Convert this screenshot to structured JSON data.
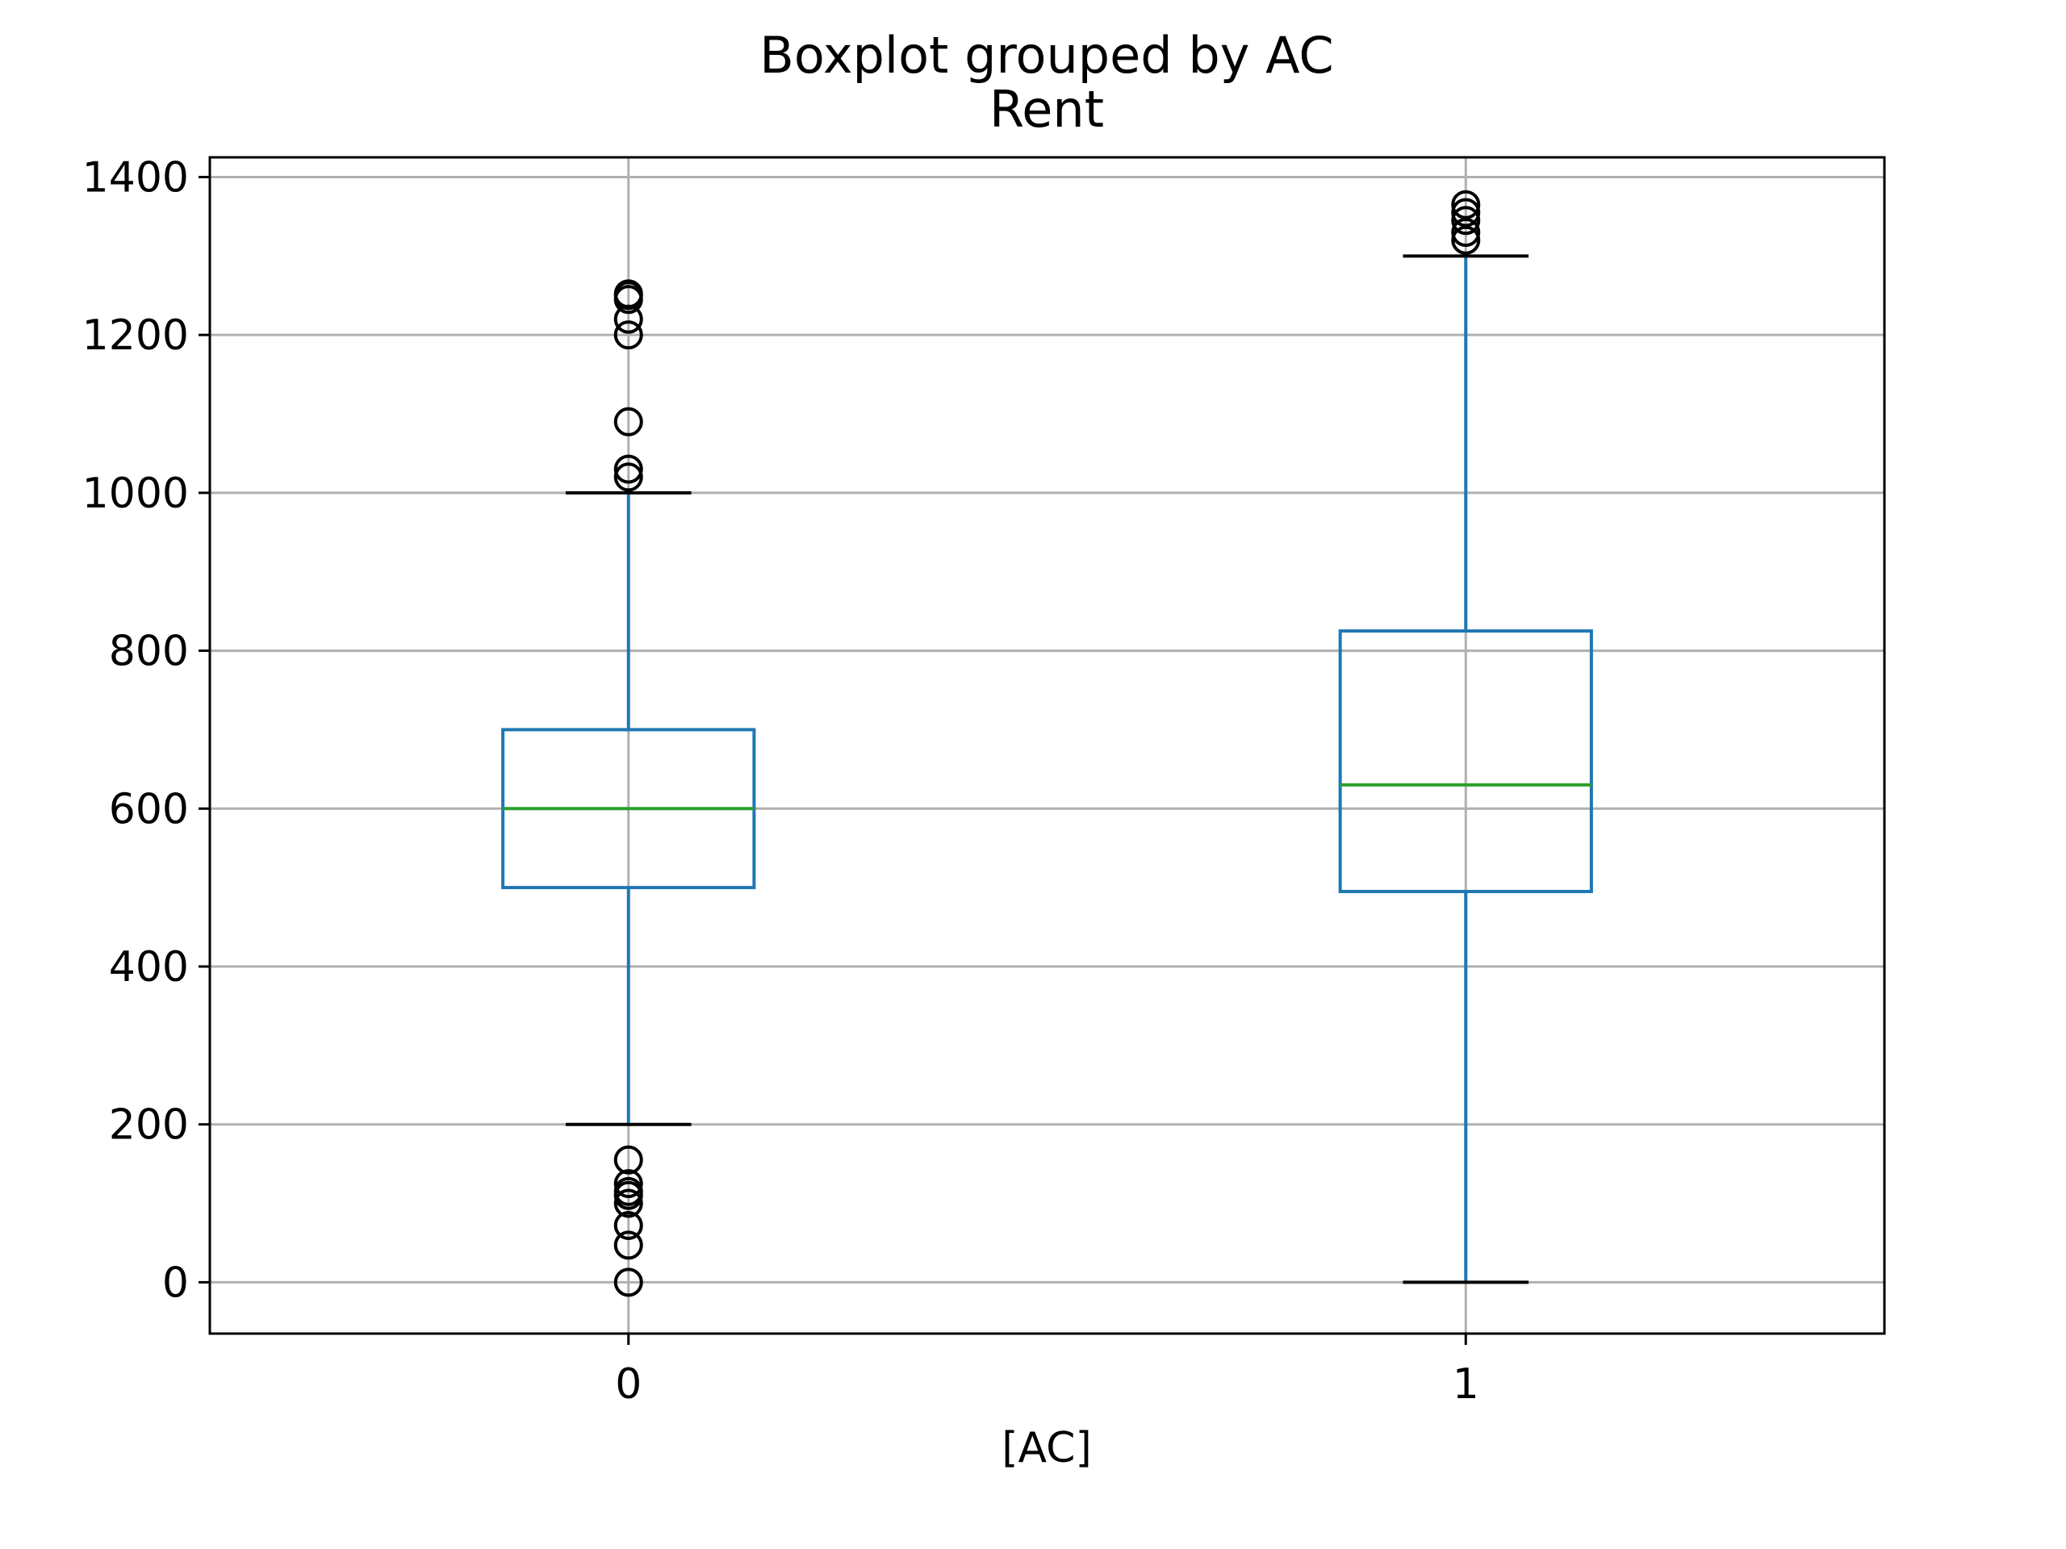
{
  "chart_data": {
    "type": "boxplot",
    "suptitle": "Boxplot grouped by AC",
    "title": "Rent",
    "xlabel": "[AC]",
    "ylabel": "",
    "ylim": [
      -65,
      1425
    ],
    "yticks": [
      0,
      200,
      400,
      600,
      800,
      1000,
      1200,
      1400
    ],
    "grid": true,
    "categories": [
      "0",
      "1"
    ],
    "boxes": [
      {
        "category": "0",
        "whisker_low": 200,
        "q1": 500,
        "median": 600,
        "q3": 700,
        "whisker_high": 1000,
        "outliers": [
          1020,
          1030,
          1090,
          1200,
          1220,
          1245,
          1250,
          1252,
          155,
          125,
          115,
          110,
          100,
          72,
          47,
          0
        ]
      },
      {
        "category": "1",
        "whisker_low": 0,
        "q1": 495,
        "median": 630,
        "q3": 825,
        "whisker_high": 1300,
        "outliers": [
          1320,
          1330,
          1345,
          1355,
          1365
        ]
      }
    ],
    "colors": {
      "box": "#1f77b4",
      "median": "#2ca02c",
      "caps": "#000000",
      "flier": "#000000",
      "grid": "#b0b0b0"
    }
  }
}
